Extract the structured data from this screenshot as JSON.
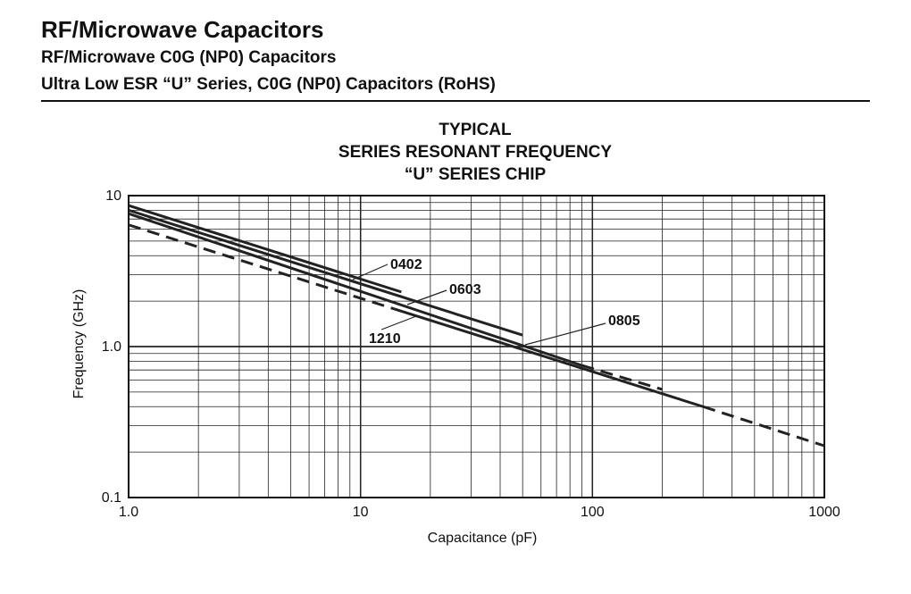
{
  "header": {
    "title": "RF/Microwave Capacitors",
    "subtitle": "RF/Microwave C0G (NP0) Capacitors",
    "series_line": "Ultra Low ESR “U” Series, C0G (NP0) Capacitors (RoHS)"
  },
  "chart_data": {
    "type": "line",
    "title_lines": [
      "TYPICAL",
      "SERIES RESONANT FREQUENCY",
      "“U” SERIES CHIP"
    ],
    "xlabel": "Capacitance (pF)",
    "ylabel": "Frequency (GHz)",
    "x_scale": "log",
    "y_scale": "log",
    "xlim": [
      1,
      1000
    ],
    "ylim": [
      0.1,
      10
    ],
    "x_tick_labels": [
      "1.0",
      "10",
      "100",
      "1000"
    ],
    "y_tick_labels": [
      "0.1",
      "1.0",
      "10"
    ],
    "grid": true,
    "series": [
      {
        "name": "0402",
        "color": "#222222",
        "dash": "solid",
        "x": [
          1,
          15
        ],
        "y": [
          8.6,
          2.3
        ]
      },
      {
        "name": "0603",
        "color": "#222222",
        "dash": "solid",
        "x": [
          1,
          50
        ],
        "y": [
          8.0,
          1.19
        ]
      },
      {
        "name": "0805",
        "color": "#222222",
        "dash": "solid+dashed",
        "x": [
          1,
          90,
          200
        ],
        "y": [
          7.6,
          0.75,
          0.52
        ],
        "x_dashed_from": 90
      },
      {
        "name": "1210",
        "color": "#222222",
        "dash": "solid+dashed",
        "x": [
          1,
          300,
          1000
        ],
        "y": [
          6.4,
          0.4,
          0.22
        ],
        "x_dashed_from": 1,
        "x_solid_from": 14,
        "x_solid_to": 300
      }
    ],
    "annotations": [
      "0402",
      "0603",
      "0805",
      "1210"
    ]
  }
}
